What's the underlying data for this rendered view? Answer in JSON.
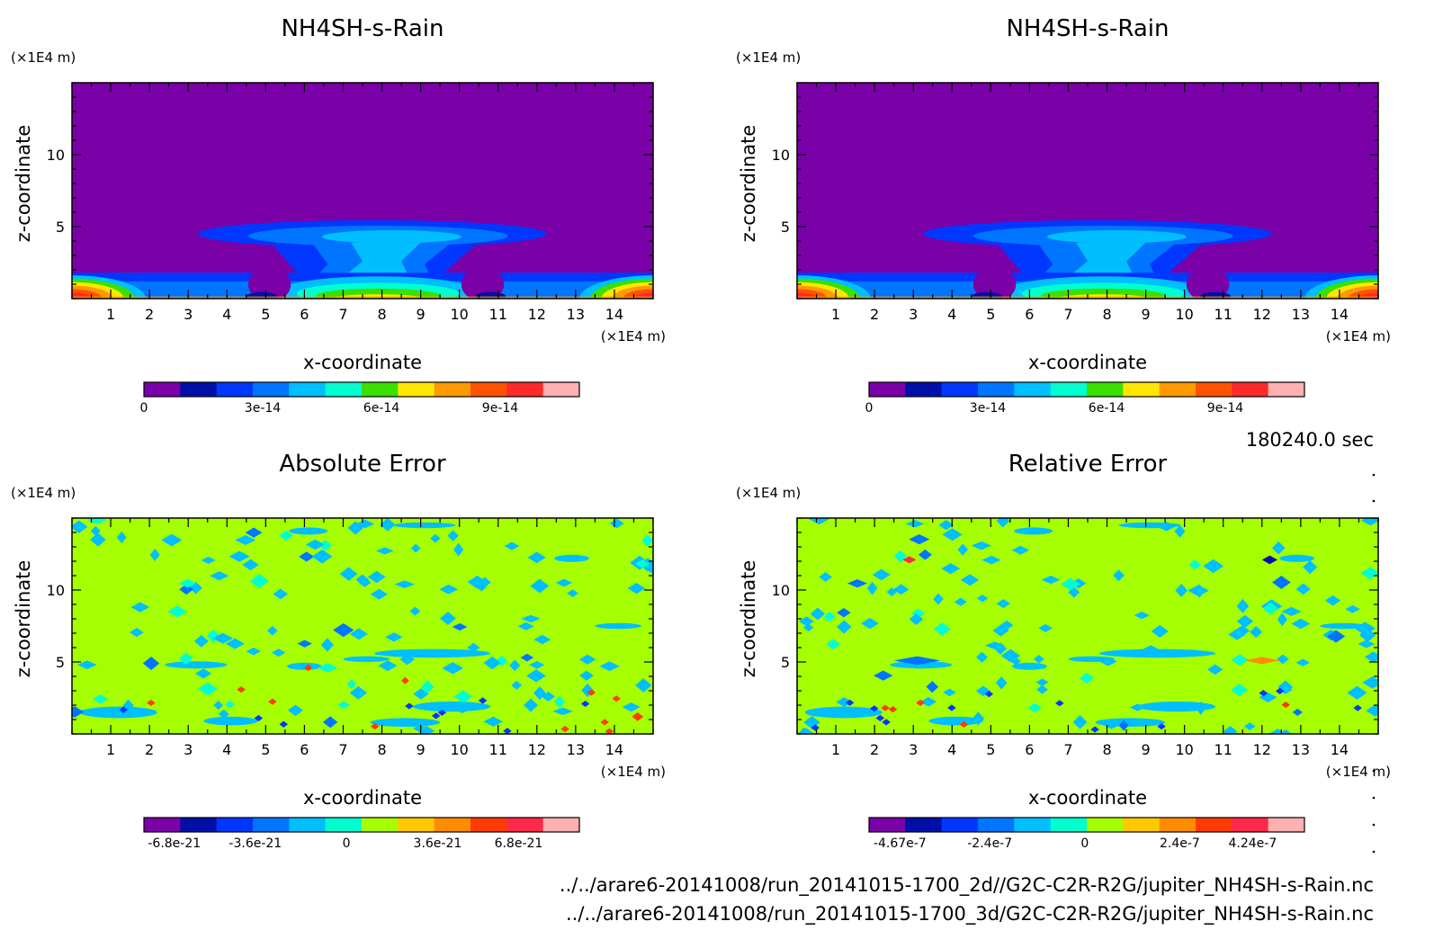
{
  "figure": {
    "time_label": "180240.0 sec",
    "footer_lines": [
      "../../arare6-20141008/run_20141015-1700_2d//G2C-C2R-R2G/jupiter_NH4SH-s-Rain.nc",
      "../../arare6-20141008/run_20141015-1700_3d/G2C-C2R-R2G/jupiter_NH4SH-s-Rain.nc"
    ]
  },
  "chart_data": [
    {
      "type": "heatmap",
      "id": "p1",
      "title": "NH4SH-s-Rain",
      "xlabel": "x-coordinate",
      "ylabel": "z-coordinate",
      "x_unit": "(×1E4 m)",
      "y_unit": "(×1E4 m)",
      "xlim": [
        0,
        15
      ],
      "ylim": [
        0,
        15
      ],
      "xticks": [
        1,
        2,
        3,
        4,
        5,
        6,
        7,
        8,
        9,
        10,
        11,
        12,
        13,
        14
      ],
      "yticks": [
        5,
        10
      ],
      "pattern": "rain",
      "colorbar": {
        "colors": [
          "#7a00a8",
          "#000fa8",
          "#0037ff",
          "#0075ff",
          "#00bfff",
          "#00ffd0",
          "#3ae000",
          "#ffe600",
          "#ff9900",
          "#ff5200",
          "#ff2a2a",
          "#ffb0b0"
        ],
        "range": [
          0,
          1.1e-13
        ],
        "ticks": [
          {
            "value": 0,
            "label": "0"
          },
          {
            "value": 3e-14,
            "label": "3e-14"
          },
          {
            "value": 6e-14,
            "label": "6e-14"
          },
          {
            "value": 9e-14,
            "label": "9e-14"
          }
        ]
      }
    },
    {
      "type": "heatmap",
      "id": "p2",
      "title": "NH4SH-s-Rain",
      "xlabel": "x-coordinate",
      "ylabel": "z-coordinate",
      "x_unit": "(×1E4 m)",
      "y_unit": "(×1E4 m)",
      "xlim": [
        0,
        15
      ],
      "ylim": [
        0,
        15
      ],
      "xticks": [
        1,
        2,
        3,
        4,
        5,
        6,
        7,
        8,
        9,
        10,
        11,
        12,
        13,
        14
      ],
      "yticks": [
        5,
        10
      ],
      "pattern": "rain",
      "colorbar": {
        "colors": [
          "#7a00a8",
          "#000fa8",
          "#0037ff",
          "#0075ff",
          "#00bfff",
          "#00ffd0",
          "#3ae000",
          "#ffe600",
          "#ff9900",
          "#ff5200",
          "#ff2a2a",
          "#ffb0b0"
        ],
        "range": [
          0,
          1.1e-13
        ],
        "ticks": [
          {
            "value": 0,
            "label": "0"
          },
          {
            "value": 3e-14,
            "label": "3e-14"
          },
          {
            "value": 6e-14,
            "label": "6e-14"
          },
          {
            "value": 9e-14,
            "label": "9e-14"
          }
        ]
      }
    },
    {
      "type": "heatmap",
      "id": "p3",
      "title": "Absolute Error",
      "xlabel": "x-coordinate",
      "ylabel": "z-coordinate",
      "x_unit": "(×1E4 m)",
      "y_unit": "(×1E4 m)",
      "xlim": [
        0,
        15
      ],
      "ylim": [
        0,
        15
      ],
      "xticks": [
        1,
        2,
        3,
        4,
        5,
        6,
        7,
        8,
        9,
        10,
        11,
        12,
        13,
        14
      ],
      "yticks": [
        5,
        10
      ],
      "pattern": "abs_error",
      "colorbar": {
        "colors": [
          "#7a00a8",
          "#000fa8",
          "#0037ff",
          "#0075ff",
          "#00bfff",
          "#00ffd0",
          "#a6ff00",
          "#ffc800",
          "#ff8c00",
          "#ff3c00",
          "#ff2a4a",
          "#ffb0b0"
        ],
        "range": [
          -8e-21,
          9.2e-21
        ],
        "ticks": [
          {
            "value": -6.8e-21,
            "label": "-6.8e-21"
          },
          {
            "value": -3.6e-21,
            "label": "-3.6e-21"
          },
          {
            "value": 0,
            "label": "0"
          },
          {
            "value": 3.6e-21,
            "label": "3.6e-21"
          },
          {
            "value": 6.8e-21,
            "label": "6.8e-21"
          }
        ]
      }
    },
    {
      "type": "heatmap",
      "id": "p4",
      "title": "Relative Error",
      "xlabel": "x-coordinate",
      "ylabel": "z-coordinate",
      "x_unit": "(×1E4 m)",
      "y_unit": "(×1E4 m)",
      "xlim": [
        0,
        15
      ],
      "ylim": [
        0,
        15
      ],
      "xticks": [
        1,
        2,
        3,
        4,
        5,
        6,
        7,
        8,
        9,
        10,
        11,
        12,
        13,
        14
      ],
      "yticks": [
        5,
        10
      ],
      "pattern": "rel_error",
      "colorbar": {
        "colors": [
          "#7a00a8",
          "#000fa8",
          "#0037ff",
          "#0075ff",
          "#00bfff",
          "#00ffd0",
          "#a6ff00",
          "#ffc800",
          "#ff8c00",
          "#ff3c00",
          "#ff2a4a",
          "#ffb0b0"
        ],
        "range": [
          -5.45e-07,
          5.55e-07
        ],
        "ticks": [
          {
            "value": -4.67e-07,
            "label": "-4.67e-7"
          },
          {
            "value": -2.4e-07,
            "label": "-2.4e-7"
          },
          {
            "value": 0,
            "label": "0"
          },
          {
            "value": 2.4e-07,
            "label": "2.4e-7"
          },
          {
            "value": 4.24e-07,
            "label": "4.24e-7"
          }
        ]
      }
    }
  ]
}
